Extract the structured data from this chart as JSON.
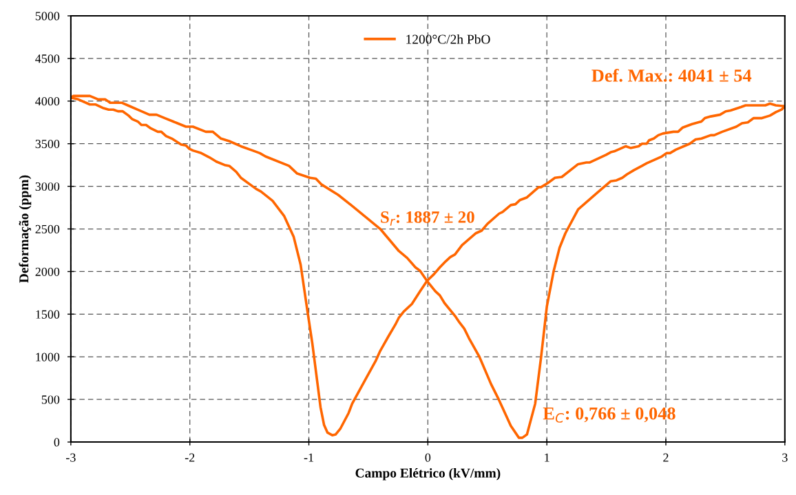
{
  "chart_data": {
    "type": "line",
    "xlabel": "Campo Elétrico (kV/mm)",
    "ylabel": "Deformação (ppm)",
    "xlim": [
      -3,
      3
    ],
    "xticks": [
      -3,
      -2,
      -1,
      0,
      1,
      2,
      3
    ],
    "ylim": [
      0,
      5000
    ],
    "yticks": [
      0,
      500,
      1000,
      1500,
      2000,
      2500,
      3000,
      3500,
      4000,
      4500,
      5000
    ],
    "grid": true,
    "legend": "top",
    "line_style": "solid",
    "marker": "none",
    "annotations": [
      "S$_{r}$: 1887 ± 20",
      "E$_{C}$: 0,766 ± 0,048",
      "Def. Max.: 4041 ± 54"
    ],
    "series": [
      {
        "name": "1200°C/2h PbO",
        "color": "#ff6600",
        "x": [
          -3.0,
          -2.98,
          -2.84,
          -2.77,
          -2.71,
          -2.67,
          -2.57,
          -2.505,
          -2.44,
          -2.34,
          -2.28,
          -2.21,
          -2.14,
          -2.033,
          -1.974,
          -1.866,
          -1.807,
          -1.738,
          -1.669,
          -1.571,
          -1.472,
          -1.413,
          -1.364,
          -1.167,
          -1.098,
          -0.99,
          -0.941,
          -0.892,
          -0.754,
          -0.636,
          -0.4,
          -0.243,
          -0.174,
          -0.105,
          -0.066,
          -0.007,
          0.062,
          0.101,
          0.14,
          0.228,
          0.267,
          0.306,
          0.345,
          0.433,
          0.531,
          0.599,
          0.697,
          0.765,
          0.794,
          0.833,
          0.902,
          0.951,
          1.0,
          1.058,
          1.107,
          1.156,
          1.263,
          1.419,
          1.537,
          1.585,
          1.634,
          1.673,
          1.732,
          1.8,
          1.839,
          1.966,
          2.006,
          2.035,
          2.084,
          2.201,
          2.25,
          2.299,
          2.377,
          2.406,
          2.474,
          2.592,
          2.64,
          2.689,
          2.738,
          2.807,
          2.875,
          2.924,
          2.972,
          3.0
        ],
        "values": [
          4040,
          4060,
          4060,
          4020,
          4020,
          3980,
          3980,
          3940,
          3900,
          3840,
          3840,
          3800,
          3760,
          3700,
          3700,
          3640,
          3640,
          3560,
          3530,
          3470,
          3420,
          3390,
          3350,
          3240,
          3150,
          3100,
          3090,
          3020,
          2900,
          2770,
          2500,
          2240,
          2160,
          2050,
          2010,
          1890,
          1770,
          1720,
          1630,
          1480,
          1400,
          1330,
          1220,
          1000,
          680,
          490,
          190,
          50,
          50,
          90,
          450,
          990,
          1590,
          2010,
          2280,
          2450,
          2730,
          2920,
          3060,
          3070,
          3100,
          3140,
          3190,
          3240,
          3270,
          3350,
          3390,
          3390,
          3430,
          3500,
          3550,
          3560,
          3600,
          3600,
          3640,
          3700,
          3740,
          3750,
          3800,
          3800,
          3830,
          3870,
          3900,
          3940
        ]
      },
      {
        "color": "#ff6600",
        "x": [
          3.0,
          2.924,
          2.875,
          2.836,
          2.67,
          2.631,
          2.543,
          2.503,
          2.455,
          2.377,
          2.328,
          2.299,
          2.22,
          2.142,
          2.103,
          2.064,
          1.976,
          1.937,
          1.898,
          1.859,
          1.839,
          1.8,
          1.771,
          1.703,
          1.664,
          1.566,
          1.537,
          1.498,
          1.361,
          1.332,
          1.263,
          1.126,
          1.068,
          1.009,
          0.951,
          0.931,
          0.833,
          0.775,
          0.736,
          0.697,
          0.628,
          0.599,
          0.501,
          0.452,
          0.404,
          0.287,
          0.228,
          0.189,
          0.15,
          0.101,
          0.052,
          -0.007,
          -0.065,
          -0.134,
          -0.203,
          -0.243,
          -0.272,
          -0.331,
          -0.4,
          -0.439,
          -0.518,
          -0.636,
          -0.666,
          -0.734,
          -0.774,
          -0.803,
          -0.843,
          -0.872,
          -0.902,
          -0.971,
          -1.01,
          -1.069,
          -1.128,
          -1.207,
          -1.305,
          -1.403,
          -1.443,
          -1.571,
          -1.61,
          -1.669,
          -1.708,
          -1.777,
          -1.836,
          -1.905,
          -1.974,
          -2.004,
          -2.033,
          -2.073,
          -2.151,
          -2.2,
          -2.24,
          -2.269,
          -2.328,
          -2.368,
          -2.407,
          -2.437,
          -2.486,
          -2.515,
          -2.564,
          -2.604,
          -2.643,
          -2.682,
          -2.732,
          -2.791,
          -2.84,
          -2.938,
          -3.0
        ],
        "values": [
          3940,
          3950,
          3970,
          3950,
          3950,
          3930,
          3890,
          3880,
          3840,
          3820,
          3800,
          3760,
          3730,
          3690,
          3640,
          3640,
          3620,
          3600,
          3560,
          3540,
          3500,
          3500,
          3470,
          3450,
          3470,
          3410,
          3400,
          3370,
          3280,
          3280,
          3260,
          3110,
          3100,
          3040,
          2990,
          2990,
          2870,
          2840,
          2790,
          2780,
          2700,
          2680,
          2560,
          2480,
          2450,
          2310,
          2200,
          2170,
          2120,
          2050,
          1970,
          1890,
          1770,
          1620,
          1530,
          1460,
          1380,
          1240,
          1070,
          950,
          750,
          450,
          340,
          160,
          90,
          80,
          110,
          200,
          410,
          1160,
          1520,
          2080,
          2410,
          2650,
          2830,
          2940,
          2970,
          3100,
          3170,
          3240,
          3250,
          3290,
          3340,
          3390,
          3420,
          3440,
          3480,
          3490,
          3560,
          3590,
          3640,
          3640,
          3680,
          3720,
          3720,
          3760,
          3790,
          3830,
          3880,
          3880,
          3900,
          3900,
          3920,
          3960,
          3960,
          4020,
          4040
        ]
      }
    ]
  }
}
